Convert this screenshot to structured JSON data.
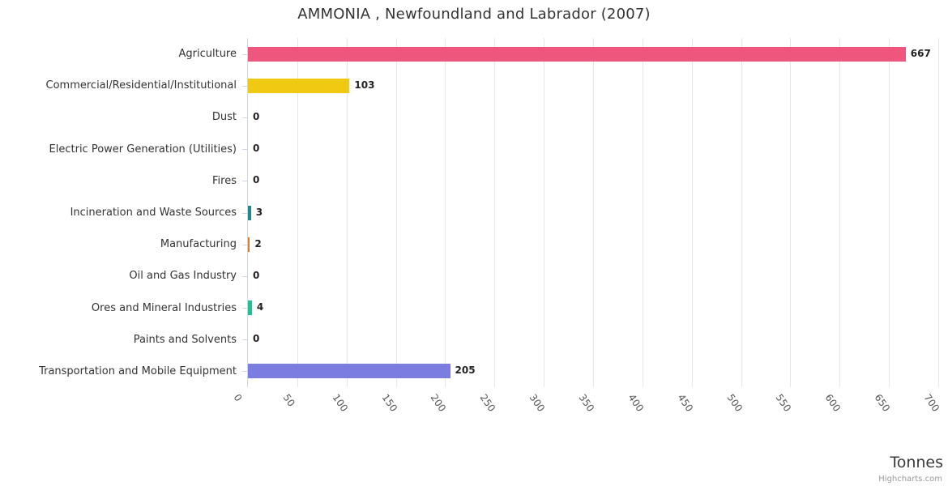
{
  "title": "AMMONIA , Newfoundland and Labrador (2007)",
  "credits_label": "Highcharts.com",
  "chart_data": {
    "type": "bar",
    "orientation": "horizontal",
    "title": "AMMONIA , Newfoundland and Labrador (2007)",
    "categories": [
      "Agriculture",
      "Commercial/Residential/Institutional",
      "Dust",
      "Electric Power Generation (Utilities)",
      "Fires",
      "Incineration and Waste Sources",
      "Manufacturing",
      "Oil and Gas Industry",
      "Ores and Mineral Industries",
      "Paints and Solvents",
      "Transportation and Mobile Equipment"
    ],
    "values": [
      667,
      103,
      0,
      0,
      0,
      3,
      2,
      0,
      4,
      0,
      205
    ],
    "bar_colors": [
      "#ee567d",
      "#efc912",
      null,
      null,
      null,
      "#1e8a8a",
      "#e07a28",
      null,
      "#21bf96",
      null,
      "#7b7ede"
    ],
    "data_labels": [
      "667",
      "103",
      "0",
      "0",
      "0",
      "3",
      "2",
      "0",
      "4",
      "0",
      "205"
    ],
    "xlabel": "Tonnes",
    "ylabel": "",
    "xlim": [
      0,
      700
    ],
    "tick_interval": 50,
    "x_tick_labels": [
      "0",
      "50",
      "100",
      "150",
      "200",
      "250",
      "300",
      "350",
      "400",
      "450",
      "500",
      "550",
      "600",
      "650",
      "700"
    ],
    "grid": true,
    "legend": false
  }
}
